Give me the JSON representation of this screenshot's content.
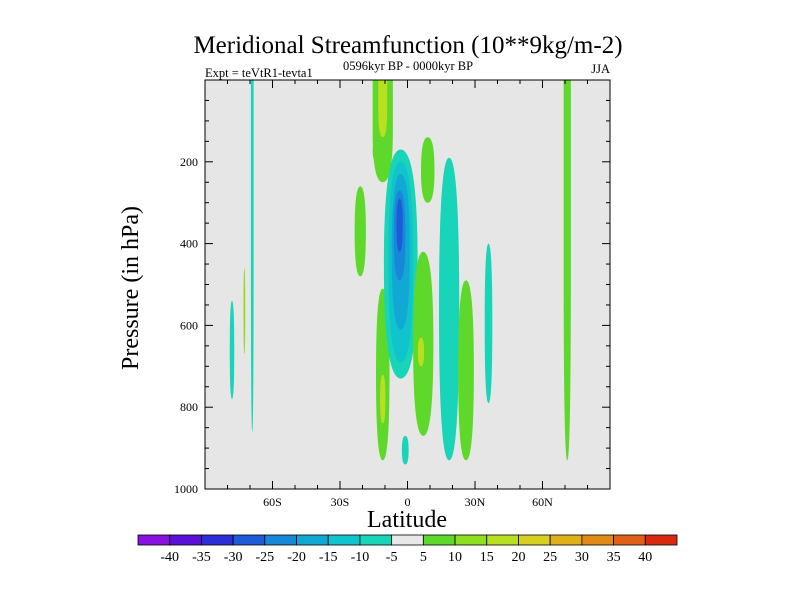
{
  "chart_data": {
    "type": "heatmap",
    "title": "Meridional Streamfunction (10**9kg/m-2)",
    "subtitle_left": "Expt = teVtR1-tevta1",
    "subtitle_center": "0596kyr BP - 0000kyr BP",
    "subtitle_right": "JJA",
    "xlabel": "Latitude",
    "ylabel": "Pressure (in hPa)",
    "xlim": [
      -90,
      90
    ],
    "ylim": [
      1000,
      0
    ],
    "x_ticks": [
      {
        "value": -60,
        "label": "60S"
      },
      {
        "value": -30,
        "label": "30S"
      },
      {
        "value": 0,
        "label": "0"
      },
      {
        "value": 30,
        "label": "30N"
      },
      {
        "value": 60,
        "label": "60N"
      }
    ],
    "y_ticks": [
      {
        "value": 200,
        "label": "200"
      },
      {
        "value": 400,
        "label": "400"
      },
      {
        "value": 600,
        "label": "600"
      },
      {
        "value": 800,
        "label": "800"
      },
      {
        "value": 1000,
        "label": "1000"
      }
    ],
    "background_color": "#e6e6e6",
    "colorbar": {
      "labels": [
        "-40",
        "-35",
        "-30",
        "-25",
        "-20",
        "-15",
        "-10",
        "-5",
        "5",
        "10",
        "15",
        "20",
        "25",
        "30",
        "35",
        "40"
      ],
      "colors": [
        "#8a12e0",
        "#5a10d8",
        "#2c2fd8",
        "#1f5ad8",
        "#1788d8",
        "#12a8d4",
        "#0fc4cc",
        "#18d4b8",
        "#e8e8e8",
        "#5ed82a",
        "#8ce020",
        "#b8e020",
        "#d8d020",
        "#e0b018",
        "#e08a18",
        "#e06018",
        "#d82810"
      ]
    },
    "contours": [
      {
        "name": "sh-high-lat-thin",
        "lat": -69,
        "p_top": 0,
        "p_bot": 860,
        "half_width": 0.6,
        "level": -5,
        "color": "#18d4b8"
      },
      {
        "name": "sh-high-lat-blob",
        "lat": -78,
        "p_top": 540,
        "p_bot": 780,
        "half_width": 1.0,
        "level": -5,
        "color": "#18d4b8"
      },
      {
        "name": "sh-high-lat-sliver",
        "lat": -72.5,
        "p_top": 460,
        "p_bot": 670,
        "half_width": 0.4,
        "level": 10,
        "color": "#8ce020"
      },
      {
        "name": "upper-sh-lobe",
        "lat": -21,
        "p_top": 260,
        "p_bot": 480,
        "half_width": 2.5,
        "level": 10,
        "color": "#5ed82a"
      },
      {
        "name": "upper-small",
        "lat": -13,
        "p_top": 150,
        "p_bot": 200,
        "half_width": 2.5,
        "level": 10,
        "color": "#5ed82a"
      },
      {
        "name": "equatorial-upper",
        "lat": -11,
        "p_top": 0,
        "p_bot": 250,
        "half_width": 4.5,
        "level": 10,
        "color": "#5ed82a"
      },
      {
        "name": "equatorial-upper-core",
        "lat": -11,
        "p_top": 0,
        "p_bot": 140,
        "half_width": 2.0,
        "level": 15,
        "color": "#b8e020"
      },
      {
        "name": "equatorial-lower",
        "lat": -11,
        "p_top": 510,
        "p_bot": 930,
        "half_width": 3.0,
        "level": 10,
        "color": "#5ed82a"
      },
      {
        "name": "equatorial-lower-core",
        "lat": -11,
        "p_top": 720,
        "p_bot": 840,
        "half_width": 1.2,
        "level": 15,
        "color": "#b8e020"
      },
      {
        "name": "main-cell-outer",
        "lat": -3,
        "p_top": 170,
        "p_bot": 730,
        "half_width": 7.5,
        "level": -5,
        "color": "#18d4b8"
      },
      {
        "name": "main-cell-10",
        "lat": -3,
        "p_top": 200,
        "p_bot": 690,
        "half_width": 5.5,
        "level": -10,
        "color": "#0fc4cc"
      },
      {
        "name": "main-cell-15",
        "lat": -3,
        "p_top": 230,
        "p_bot": 610,
        "half_width": 4.0,
        "level": -15,
        "color": "#12a8d4"
      },
      {
        "name": "main-cell-20",
        "lat": -3.5,
        "p_top": 270,
        "p_bot": 490,
        "half_width": 2.6,
        "level": -20,
        "color": "#1788d8"
      },
      {
        "name": "main-cell-25",
        "lat": -3.5,
        "p_top": 290,
        "p_bot": 420,
        "half_width": 1.4,
        "level": -25,
        "color": "#1f5ad8"
      },
      {
        "name": "main-cell-base",
        "lat": -1,
        "p_top": 870,
        "p_bot": 940,
        "half_width": 1.5,
        "level": -5,
        "color": "#18d4b8"
      },
      {
        "name": "ne-eq-upper",
        "lat": 9,
        "p_top": 140,
        "p_bot": 300,
        "half_width": 3.0,
        "level": 10,
        "color": "#5ed82a"
      },
      {
        "name": "ne-eq-lower",
        "lat": 7,
        "p_top": 420,
        "p_bot": 870,
        "half_width": 4.5,
        "level": 10,
        "color": "#5ed82a"
      },
      {
        "name": "ne-eq-lower-core",
        "lat": 6,
        "p_top": 630,
        "p_bot": 700,
        "half_width": 1.4,
        "level": 15,
        "color": "#b8e020"
      },
      {
        "name": "nh-sub-cell-a",
        "lat": 18.5,
        "p_top": 190,
        "p_bot": 930,
        "half_width": 4.5,
        "level": -5,
        "color": "#18d4b8"
      },
      {
        "name": "nh-sub-cell-b",
        "lat": 26,
        "p_top": 490,
        "p_bot": 930,
        "half_width": 3.5,
        "level": 10,
        "color": "#5ed82a"
      },
      {
        "name": "nh-sub-cell-c",
        "lat": 36,
        "p_top": 400,
        "p_bot": 790,
        "half_width": 1.7,
        "level": -5,
        "color": "#18d4b8"
      },
      {
        "name": "nh-high-lat",
        "lat": 71,
        "p_top": 0,
        "p_bot": 930,
        "half_width": 1.6,
        "level": 10,
        "color": "#5ed82a"
      }
    ]
  }
}
